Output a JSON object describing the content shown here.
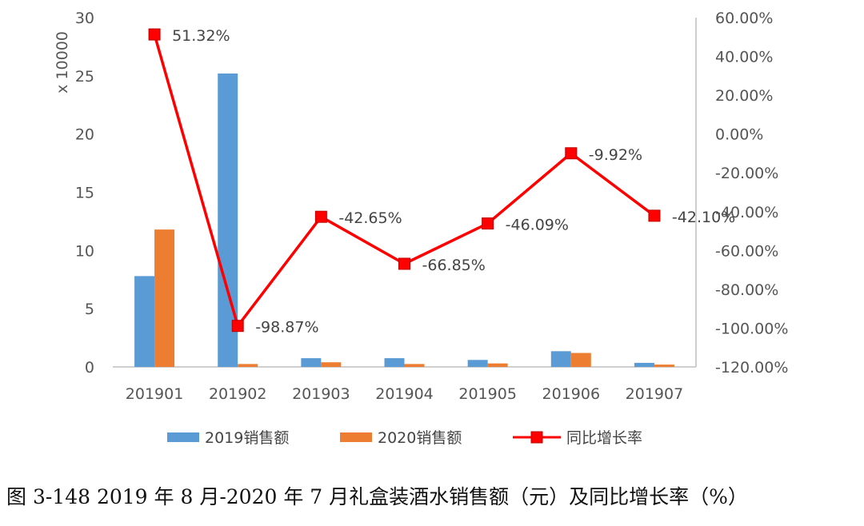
{
  "caption": "图 3-148 2019 年 8 月-2020 年 7 月礼盒装酒水销售额（元）及同比增长率（%）",
  "chart_data": {
    "type": "bar",
    "categories": [
      "201901",
      "201902",
      "201903",
      "201904",
      "201905",
      "201906",
      "201907"
    ],
    "ylabel": "x 10000",
    "ylim": [
      0,
      30
    ],
    "yticks": [
      "0",
      "5",
      "10",
      "15",
      "20",
      "25",
      "30"
    ],
    "y2lim": [
      -120,
      60
    ],
    "y2ticks": [
      "-120.00%",
      "-100.00%",
      "-80.00%",
      "-60.00%",
      "-40.00%",
      "-20.00%",
      "0.00%",
      "20.00%",
      "40.00%",
      "60.00%"
    ],
    "series": [
      {
        "name": "2019销售额",
        "kind": "bar",
        "axis": "left",
        "color": "#5B9BD5",
        "values": [
          7.8,
          25.2,
          0.75,
          0.75,
          0.6,
          1.35,
          0.35
        ]
      },
      {
        "name": "2020销售额",
        "kind": "bar",
        "axis": "left",
        "color": "#ED7D31",
        "values": [
          11.8,
          0.25,
          0.4,
          0.25,
          0.3,
          1.2,
          0.2
        ]
      },
      {
        "name": "同比增长率",
        "kind": "line",
        "axis": "right",
        "color": "#FF0000",
        "values": [
          51.32,
          -98.87,
          -42.65,
          -66.85,
          -46.09,
          -9.92,
          -42.1
        ],
        "labels": [
          "51.32%",
          "-98.87%",
          "-42.65%",
          "-66.85%",
          "-46.09%",
          "-9.92%",
          "-42.10%"
        ]
      }
    ],
    "legend": "bottom",
    "grid": false
  }
}
